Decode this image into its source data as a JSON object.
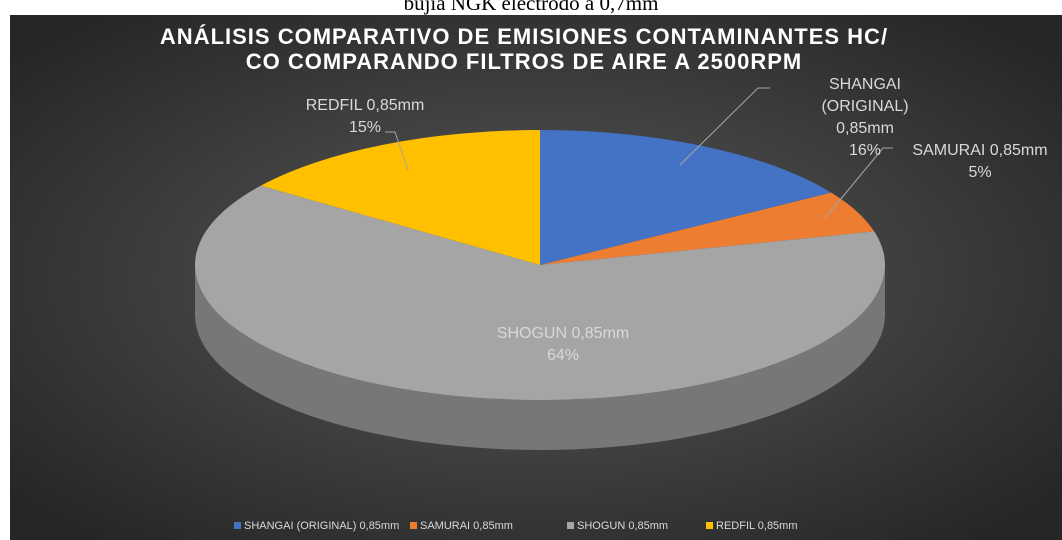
{
  "caption": "bujía NGK electrodo a 0,7mm",
  "chart_data": {
    "type": "pie3d",
    "title": [
      "ANÁLISIS COMPARATIVO DE EMISIONES CONTAMINANTES HC/",
      "CO COMPARANDO FILTROS DE AIRE A 2500RPM"
    ],
    "categories": [
      "SHANGAI (ORIGINAL) 0,85mm",
      "SAMURAI 0,85mm",
      "SHOGUN 0,85mm",
      "REDFIL 0,85mm"
    ],
    "values": [
      16,
      5,
      64,
      15
    ],
    "value_labels": [
      "16%",
      "5%",
      "64%",
      "15%"
    ],
    "colors": [
      "#4472c4",
      "#ed7d31",
      "#a5a5a5",
      "#ffc000"
    ],
    "legend": "bottom"
  }
}
